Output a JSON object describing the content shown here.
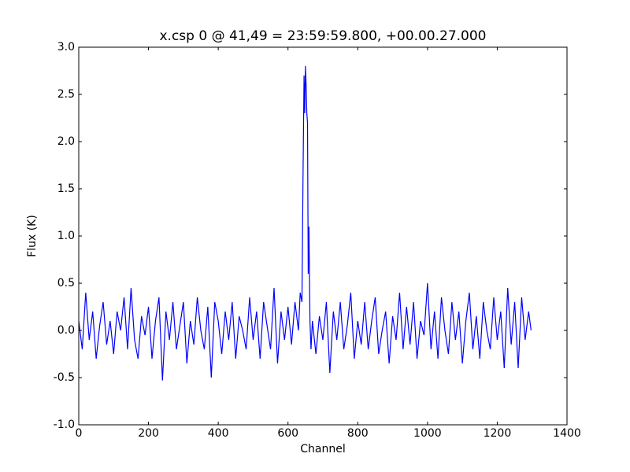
{
  "chart_data": {
    "type": "line",
    "title": "x.csp 0 @ 41,49 = 23:59:59.800, +00.00.27.000",
    "x_label": "Channel",
    "y_label": "Flux (K)",
    "x": [
      0,
      10,
      20,
      30,
      40,
      50,
      60,
      70,
      80,
      90,
      100,
      110,
      120,
      130,
      140,
      150,
      160,
      170,
      180,
      190,
      200,
      210,
      220,
      230,
      240,
      250,
      260,
      270,
      280,
      290,
      300,
      310,
      320,
      330,
      340,
      350,
      360,
      370,
      380,
      390,
      400,
      410,
      420,
      430,
      440,
      450,
      460,
      470,
      480,
      490,
      500,
      510,
      520,
      530,
      540,
      550,
      560,
      570,
      580,
      590,
      600,
      610,
      620,
      630,
      635,
      640,
      643,
      646,
      648,
      650,
      652,
      654,
      656,
      658,
      660,
      663,
      666,
      670,
      680,
      690,
      700,
      710,
      720,
      730,
      740,
      750,
      760,
      770,
      780,
      790,
      800,
      810,
      820,
      830,
      840,
      850,
      860,
      870,
      880,
      890,
      900,
      910,
      920,
      930,
      940,
      950,
      960,
      970,
      980,
      990,
      1000,
      1010,
      1020,
      1030,
      1040,
      1050,
      1060,
      1070,
      1080,
      1090,
      1100,
      1110,
      1120,
      1130,
      1140,
      1150,
      1160,
      1170,
      1180,
      1190,
      1200,
      1210,
      1220,
      1230,
      1240,
      1250,
      1260,
      1270,
      1280,
      1290,
      1297
    ],
    "series": [
      {
        "color": "#0000ff",
        "values": [
          0.1,
          -0.2,
          0.4,
          -0.1,
          0.2,
          -0.3,
          0.05,
          0.3,
          -0.15,
          0.1,
          -0.25,
          0.2,
          0.0,
          0.35,
          -0.2,
          0.45,
          -0.1,
          -0.3,
          0.15,
          -0.05,
          0.25,
          -0.3,
          0.1,
          0.35,
          -0.53,
          0.2,
          -0.1,
          0.3,
          -0.2,
          0.05,
          0.3,
          -0.35,
          0.1,
          -0.15,
          0.35,
          0.0,
          -0.2,
          0.25,
          -0.5,
          0.3,
          0.1,
          -0.25,
          0.2,
          -0.1,
          0.3,
          -0.3,
          0.15,
          0.0,
          -0.2,
          0.35,
          -0.1,
          0.2,
          -0.3,
          0.3,
          0.05,
          -0.2,
          0.45,
          -0.35,
          0.2,
          -0.1,
          0.25,
          -0.15,
          0.3,
          0.0,
          0.4,
          0.3,
          1.6,
          2.7,
          2.3,
          2.8,
          2.6,
          2.3,
          2.2,
          0.6,
          1.1,
          0.1,
          -0.2,
          0.1,
          -0.25,
          0.15,
          -0.1,
          0.3,
          -0.45,
          0.2,
          -0.1,
          0.3,
          -0.2,
          0.05,
          0.4,
          -0.3,
          0.1,
          -0.15,
          0.3,
          -0.2,
          0.1,
          0.35,
          -0.25,
          0.0,
          0.2,
          -0.35,
          0.15,
          -0.1,
          0.4,
          -0.2,
          0.25,
          -0.15,
          0.3,
          -0.3,
          0.1,
          -0.05,
          0.5,
          -0.2,
          0.2,
          -0.3,
          0.35,
          0.0,
          -0.25,
          0.3,
          -0.1,
          0.2,
          -0.35,
          0.1,
          0.4,
          -0.2,
          0.15,
          -0.3,
          0.3,
          0.0,
          -0.2,
          0.35,
          -0.1,
          0.2,
          -0.4,
          0.45,
          -0.15,
          0.3,
          -0.4,
          0.35,
          -0.1,
          0.2,
          0.0
        ]
      }
    ],
    "xlim": [
      0,
      1400
    ],
    "xticks": [
      0,
      200,
      400,
      600,
      800,
      1000,
      1200,
      1400
    ],
    "ylim": [
      -1,
      3
    ],
    "yticks": [
      {
        "value": -1,
        "label": "-1.0"
      },
      {
        "value": -0.5,
        "label": "-0.5"
      },
      {
        "value": 0,
        "label": "0.0"
      },
      {
        "value": 0.5,
        "label": "0.5"
      },
      {
        "value": 1,
        "label": "1.0"
      },
      {
        "value": 1.5,
        "label": "1.5"
      },
      {
        "value": 2,
        "label": "2.0"
      },
      {
        "value": 2.5,
        "label": "2.5"
      },
      {
        "value": 3,
        "label": "3.0"
      }
    ]
  }
}
